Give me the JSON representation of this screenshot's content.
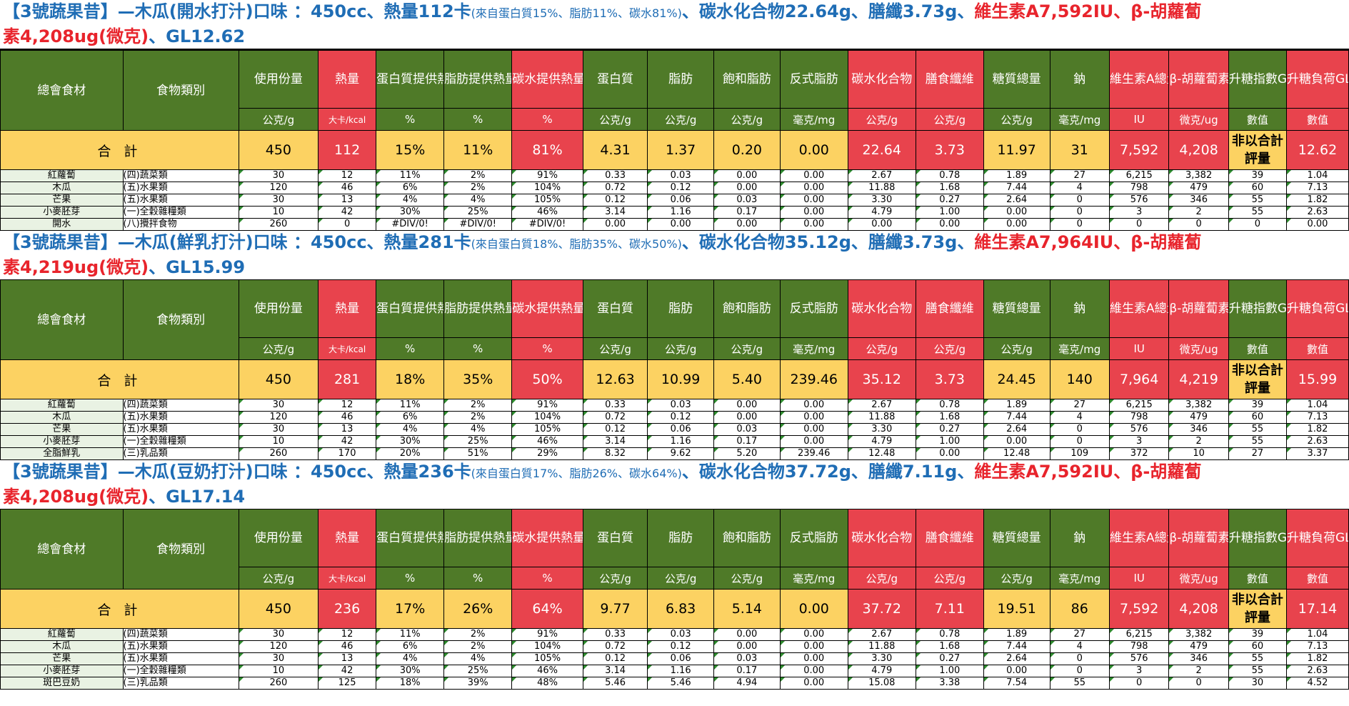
{
  "headers": {
    "ingredient": "總會食材",
    "category": "食物類別",
    "cols": [
      "使用份量",
      "熱量",
      "蛋白質提供熱量",
      "脂肪提供熱量",
      "碳水提供熱量",
      "蛋白質",
      "脂肪",
      "飽和脂肪",
      "反式脂肪",
      "碳水化合物",
      "膳食纖維",
      "糖質總量",
      "鈉",
      "維生素A總量",
      "β-胡蘿蔔素",
      "升糖指數GI",
      "升糖負荷GL"
    ],
    "units": [
      "公克/g",
      "大卡/kcal",
      "%",
      "%",
      "%",
      "公克/g",
      "公克/g",
      "公克/g",
      "毫克/mg",
      "公克/g",
      "公克/g",
      "公克/g",
      "毫克/mg",
      "IU",
      "微克/ug",
      "數值",
      "數值"
    ]
  },
  "total_label": "合 計",
  "gi_note": "非以合計評量",
  "sections": [
    {
      "title_main": "【3號蔬果昔】—木瓜(開水打汁)口味 ：450cc、熱量112卡",
      "title_small": "(來自蛋白質15%、脂肪11%、碳水81%)",
      "title_mid": "、碳水化合物22.64g、膳纖3.73g、",
      "title_red1": "維生素A7,592IU、β-胡蘿蔔",
      "title_red2": "素4,208ug(微克)",
      "title_end": "、GL12.62",
      "totals": [
        "450",
        "112",
        "15%",
        "11%",
        "81%",
        "4.31",
        "1.37",
        "0.20",
        "0.00",
        "22.64",
        "3.73",
        "11.97",
        "31",
        "7,592",
        "4,208",
        "12.62"
      ],
      "rows": [
        {
          "name": "紅蘿蔔",
          "cat": "(四)蔬菜類",
          "vals": [
            "30",
            "12",
            "11%",
            "2%",
            "91%",
            "0.33",
            "0.03",
            "0.00",
            "0.00",
            "2.67",
            "0.78",
            "1.89",
            "27",
            "6,215",
            "3,382",
            "39",
            "1.04"
          ]
        },
        {
          "name": "木瓜",
          "cat": "(五)水果類",
          "vals": [
            "120",
            "46",
            "6%",
            "2%",
            "104%",
            "0.72",
            "0.12",
            "0.00",
            "0.00",
            "11.88",
            "1.68",
            "7.44",
            "4",
            "798",
            "479",
            "60",
            "7.13"
          ]
        },
        {
          "name": "芒果",
          "cat": "(五)水果類",
          "vals": [
            "30",
            "13",
            "4%",
            "4%",
            "105%",
            "0.12",
            "0.06",
            "0.03",
            "0.00",
            "3.30",
            "0.27",
            "2.64",
            "0",
            "576",
            "346",
            "55",
            "1.82"
          ]
        },
        {
          "name": "小麥胚芽",
          "cat": "(一)全穀雜糧類",
          "vals": [
            "10",
            "42",
            "30%",
            "25%",
            "46%",
            "3.14",
            "1.16",
            "0.17",
            "0.00",
            "4.79",
            "1.00",
            "0.00",
            "0",
            "3",
            "2",
            "55",
            "2.63"
          ]
        },
        {
          "name": "開水",
          "cat": "(八)攪拌食物",
          "vals": [
            "260",
            "0",
            "#DIV/0!",
            "#DIV/0!",
            "#DIV/0!",
            "0.00",
            "0.00",
            "0.00",
            "0.00",
            "0.00",
            "0.00",
            "0.00",
            "0",
            "0",
            "0",
            "0",
            "0.00"
          ]
        }
      ]
    },
    {
      "title_main": "【3號蔬果昔】—木瓜(鮮乳打汁)口味 ：450cc、熱量281卡",
      "title_small": "(來自蛋白質18%、脂肪35%、碳水50%)",
      "title_mid": "、碳水化合物35.12g、膳纖3.73g、",
      "title_red1": "維生素A7,964IU、β-胡蘿蔔",
      "title_red2": "素4,219ug(微克)",
      "title_end": "、GL15.99",
      "totals": [
        "450",
        "281",
        "18%",
        "35%",
        "50%",
        "12.63",
        "10.99",
        "5.40",
        "239.46",
        "35.12",
        "3.73",
        "24.45",
        "140",
        "7,964",
        "4,219",
        "15.99"
      ],
      "rows": [
        {
          "name": "紅蘿蔔",
          "cat": "(四)蔬菜類",
          "vals": [
            "30",
            "12",
            "11%",
            "2%",
            "91%",
            "0.33",
            "0.03",
            "0.00",
            "0.00",
            "2.67",
            "0.78",
            "1.89",
            "27",
            "6,215",
            "3,382",
            "39",
            "1.04"
          ]
        },
        {
          "name": "木瓜",
          "cat": "(五)水果類",
          "vals": [
            "120",
            "46",
            "6%",
            "2%",
            "104%",
            "0.72",
            "0.12",
            "0.00",
            "0.00",
            "11.88",
            "1.68",
            "7.44",
            "4",
            "798",
            "479",
            "60",
            "7.13"
          ]
        },
        {
          "name": "芒果",
          "cat": "(五)水果類",
          "vals": [
            "30",
            "13",
            "4%",
            "4%",
            "105%",
            "0.12",
            "0.06",
            "0.03",
            "0.00",
            "3.30",
            "0.27",
            "2.64",
            "0",
            "576",
            "346",
            "55",
            "1.82"
          ]
        },
        {
          "name": "小麥胚芽",
          "cat": "(一)全穀雜糧類",
          "vals": [
            "10",
            "42",
            "30%",
            "25%",
            "46%",
            "3.14",
            "1.16",
            "0.17",
            "0.00",
            "4.79",
            "1.00",
            "0.00",
            "0",
            "3",
            "2",
            "55",
            "2.63"
          ]
        },
        {
          "name": "全脂鮮乳",
          "cat": "(三)乳品類",
          "vals": [
            "260",
            "170",
            "20%",
            "51%",
            "29%",
            "8.32",
            "9.62",
            "5.20",
            "239.46",
            "12.48",
            "0.00",
            "12.48",
            "109",
            "372",
            "10",
            "27",
            "3.37"
          ]
        }
      ]
    },
    {
      "title_main": "【3號蔬果昔】—木瓜(豆奶打汁)口味 ：450cc、熱量236卡",
      "title_small": "(來自蛋白質17%、脂肪26%、碳水64%)",
      "title_mid": "、碳水化合物37.72g、膳纖7.11g、",
      "title_red1": "維生素A7,592IU、β-胡蘿蔔",
      "title_red2": "素4,208ug(微克)",
      "title_end": "、GL17.14",
      "totals": [
        "450",
        "236",
        "17%",
        "26%",
        "64%",
        "9.77",
        "6.83",
        "5.14",
        "0.00",
        "37.72",
        "7.11",
        "19.51",
        "86",
        "7,592",
        "4,208",
        "17.14"
      ],
      "rows": [
        {
          "name": "紅蘿蔔",
          "cat": "(四)蔬菜類",
          "vals": [
            "30",
            "12",
            "11%",
            "2%",
            "91%",
            "0.33",
            "0.03",
            "0.00",
            "0.00",
            "2.67",
            "0.78",
            "1.89",
            "27",
            "6,215",
            "3,382",
            "39",
            "1.04"
          ]
        },
        {
          "name": "木瓜",
          "cat": "(五)水果類",
          "vals": [
            "120",
            "46",
            "6%",
            "2%",
            "104%",
            "0.72",
            "0.12",
            "0.00",
            "0.00",
            "11.88",
            "1.68",
            "7.44",
            "4",
            "798",
            "479",
            "60",
            "7.13"
          ]
        },
        {
          "name": "芒果",
          "cat": "(五)水果類",
          "vals": [
            "30",
            "13",
            "4%",
            "4%",
            "105%",
            "0.12",
            "0.06",
            "0.03",
            "0.00",
            "3.30",
            "0.27",
            "2.64",
            "0",
            "576",
            "346",
            "55",
            "1.82"
          ]
        },
        {
          "name": "小麥胚芽",
          "cat": "(一)全穀雜糧類",
          "vals": [
            "10",
            "42",
            "30%",
            "25%",
            "46%",
            "3.14",
            "1.16",
            "0.17",
            "0.00",
            "4.79",
            "1.00",
            "0.00",
            "0",
            "3",
            "2",
            "55",
            "2.63"
          ]
        },
        {
          "name": "斑巴豆奶",
          "cat": "(三)乳品類",
          "vals": [
            "260",
            "125",
            "18%",
            "39%",
            "48%",
            "5.46",
            "5.46",
            "4.94",
            "0.00",
            "15.08",
            "3.38",
            "7.54",
            "55",
            "0",
            "0",
            "30",
            "4.52"
          ]
        }
      ]
    }
  ]
}
